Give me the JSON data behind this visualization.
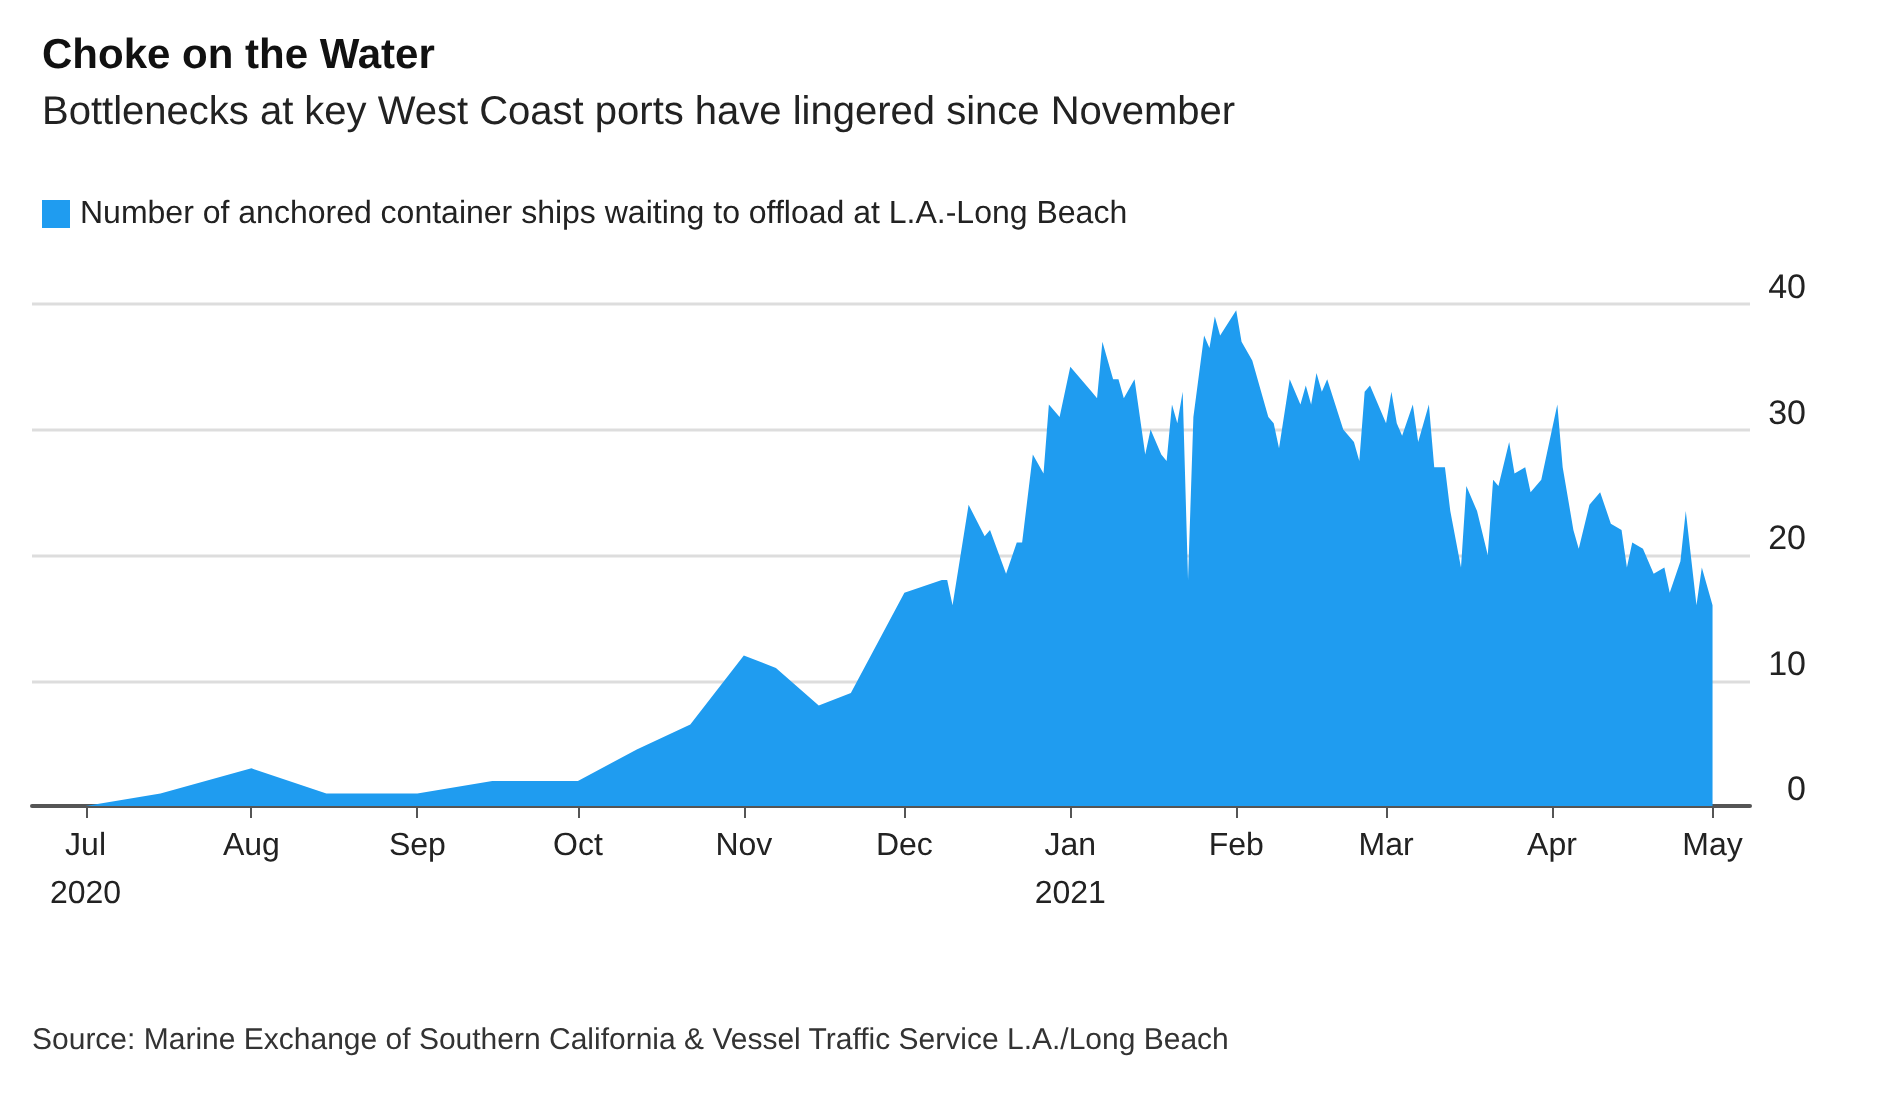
{
  "chart_data": {
    "type": "area",
    "title": "Choke on the Water",
    "subtitle": "Bottlenecks at key West Coast ports have lingered since November",
    "annotations": [
      "Source: Marine Exchange of Southern California & Vessel Traffic Service L.A./Long Beach"
    ],
    "x": [
      "2020-07-01",
      "2020-07-15",
      "2020-08-01",
      "2020-08-15",
      "2020-09-01",
      "2020-09-15",
      "2020-10-01",
      "2020-10-12",
      "2020-10-22",
      "2020-11-01",
      "2020-11-07",
      "2020-11-15",
      "2020-11-21",
      "2020-12-01",
      "2020-12-08",
      "2020-12-09",
      "2020-12-10",
      "2020-12-13",
      "2020-12-16",
      "2020-12-17",
      "2020-12-20",
      "2020-12-22",
      "2020-12-23",
      "2020-12-25",
      "2020-12-27",
      "2020-12-28",
      "2020-12-30",
      "2021-01-01",
      "2021-01-05",
      "2021-01-06",
      "2021-01-07",
      "2021-01-09",
      "2021-01-10",
      "2021-01-11",
      "2021-01-13",
      "2021-01-15",
      "2021-01-16",
      "2021-01-18",
      "2021-01-19",
      "2021-01-20",
      "2021-01-21",
      "2021-01-22",
      "2021-01-23",
      "2021-01-24",
      "2021-01-26",
      "2021-01-27",
      "2021-01-28",
      "2021-01-29",
      "2021-02-01",
      "2021-02-02",
      "2021-02-04",
      "2021-02-07",
      "2021-02-08",
      "2021-02-09",
      "2021-02-11",
      "2021-02-13",
      "2021-02-14",
      "2021-02-15",
      "2021-02-16",
      "2021-02-17",
      "2021-02-18",
      "2021-02-21",
      "2021-02-23",
      "2021-02-24",
      "2021-02-25",
      "2021-02-26",
      "2021-03-01",
      "2021-03-02",
      "2021-03-03",
      "2021-03-04",
      "2021-03-06",
      "2021-03-07",
      "2021-03-09",
      "2021-03-10",
      "2021-03-12",
      "2021-03-13",
      "2021-03-15",
      "2021-03-16",
      "2021-03-18",
      "2021-03-20",
      "2021-03-21",
      "2021-03-22",
      "2021-03-24",
      "2021-03-25",
      "2021-03-27",
      "2021-03-28",
      "2021-03-30",
      "2021-04-02",
      "2021-04-03",
      "2021-04-05",
      "2021-04-06",
      "2021-04-08",
      "2021-04-10",
      "2021-04-12",
      "2021-04-14",
      "2021-04-15",
      "2021-04-16",
      "2021-04-18",
      "2021-04-20",
      "2021-04-22",
      "2021-04-23",
      "2021-04-25",
      "2021-04-26",
      "2021-04-28",
      "2021-04-29",
      "2021-05-01"
    ],
    "series": [
      {
        "name": "Number of anchored container ships waiting to offload at L.A.-Long Beach",
        "color": "#1f9cf0",
        "values": [
          0,
          1,
          3,
          1,
          1,
          2,
          2,
          4.5,
          6.5,
          12,
          11,
          8,
          9,
          17,
          18,
          18,
          16,
          24,
          21.5,
          22,
          18.5,
          21,
          21,
          28,
          26.5,
          32,
          31,
          35,
          33,
          32.5,
          37,
          34,
          34,
          32.5,
          34,
          28,
          30,
          28,
          27.5,
          32,
          30.5,
          33,
          18,
          31,
          37.5,
          36.5,
          39,
          37.5,
          39.5,
          37,
          35.5,
          31,
          30.5,
          28.5,
          34,
          32,
          33.5,
          32,
          34.5,
          33,
          34,
          30,
          29,
          27.5,
          33,
          33.5,
          30.5,
          33,
          30.5,
          29.5,
          32,
          29,
          32,
          27,
          27,
          23.5,
          19,
          25.5,
          23.5,
          20,
          26,
          25.5,
          29,
          26.5,
          27,
          25,
          26,
          32,
          27,
          22,
          20.5,
          24,
          25,
          22.5,
          22,
          19,
          21,
          20.5,
          18.5,
          19,
          17,
          19.5,
          23.5,
          16,
          19,
          16
        ]
      }
    ],
    "xlim": [
      "2020-06-21",
      "2021-05-08"
    ],
    "xticks": [
      {
        "value": "2020-07-01",
        "label": "Jul\n2020"
      },
      {
        "value": "2020-08-01",
        "label": "Aug"
      },
      {
        "value": "2020-09-01",
        "label": "Sep"
      },
      {
        "value": "2020-10-01",
        "label": "Oct"
      },
      {
        "value": "2020-11-01",
        "label": "Nov"
      },
      {
        "value": "2020-12-01",
        "label": "Dec"
      },
      {
        "value": "2021-01-01",
        "label": "Jan\n2021"
      },
      {
        "value": "2021-02-01",
        "label": "Feb"
      },
      {
        "value": "2021-03-01",
        "label": "Mar"
      },
      {
        "value": "2021-04-01",
        "label": "Apr"
      },
      {
        "value": "2021-05-01",
        "label": "May"
      }
    ],
    "ylim": [
      0,
      40
    ],
    "yticks": [
      0,
      10,
      20,
      30,
      40
    ],
    "grid": "y",
    "legend": "top left"
  }
}
